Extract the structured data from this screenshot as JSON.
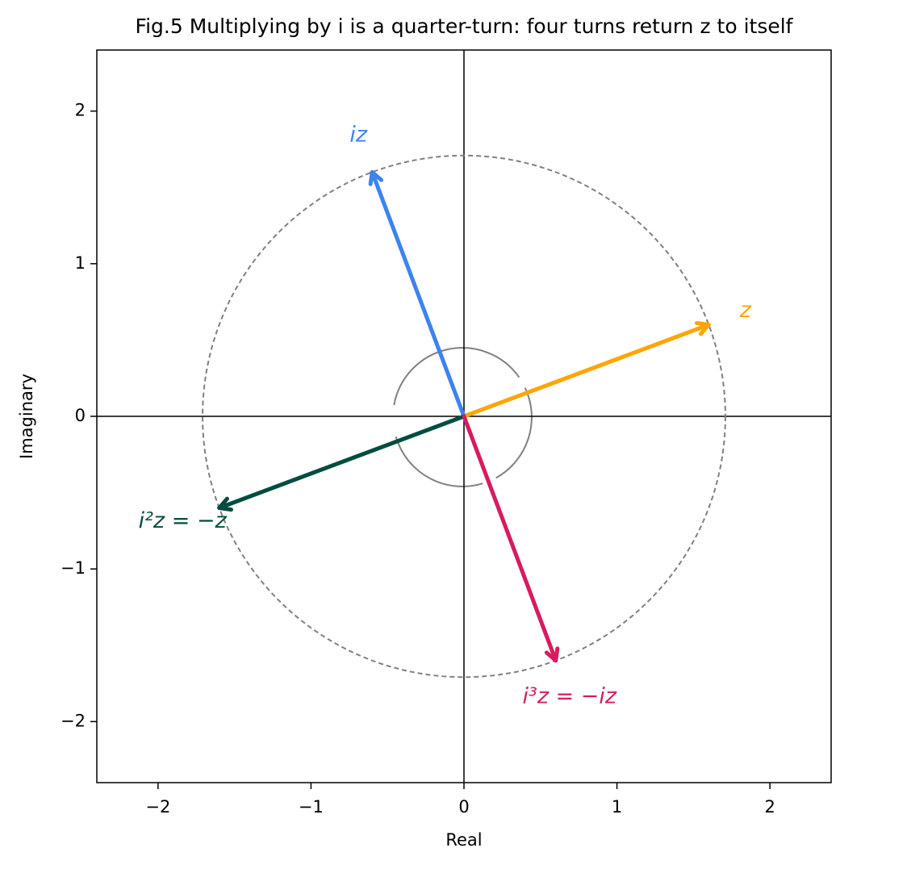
{
  "chart_data": {
    "type": "vector",
    "title": "Fig.5 Multiplying by i is a quarter-turn: four turns return z to itself",
    "x_label": "Real",
    "y_label": "Imaginary",
    "xlim": [
      -2.4,
      2.4
    ],
    "ylim": [
      -2.4,
      2.4
    ],
    "xticks": [
      {
        "value": -2,
        "label": "−2"
      },
      {
        "value": -1,
        "label": "−1"
      },
      0,
      1,
      2
    ],
    "yticks": [
      {
        "value": -2,
        "label": "−2"
      },
      {
        "value": -1,
        "label": "−1"
      },
      0,
      1,
      2
    ],
    "series": [
      {
        "name": "z",
        "color": "#ffa500",
        "x": 1.6,
        "y": 0.6
      },
      {
        "name": "iz",
        "color": "#3d82ef",
        "x": -0.6,
        "y": 1.6
      },
      {
        "name": "i²z = −z",
        "color": "#004d40",
        "x": -1.6,
        "y": -0.6
      },
      {
        "name": "i³z = −iz",
        "color": "#d81b60",
        "x": 0.6,
        "y": -1.6
      }
    ]
  }
}
